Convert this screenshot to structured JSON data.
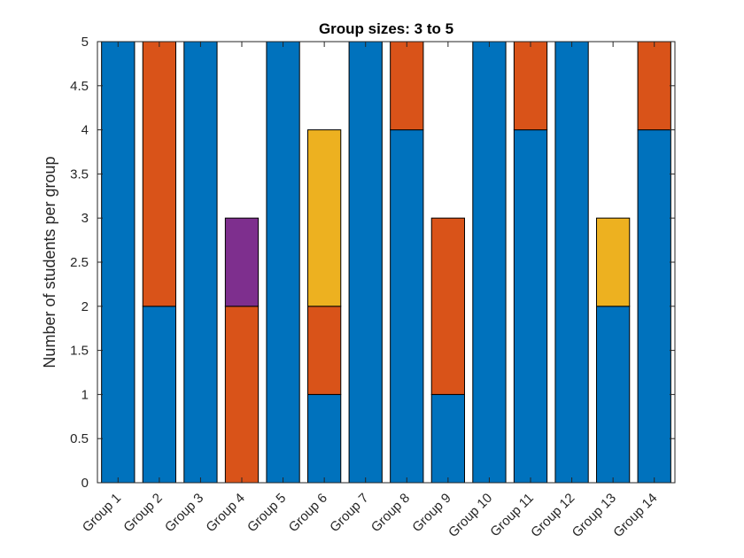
{
  "chart_data": {
    "type": "bar",
    "stacked": true,
    "title": "Group sizes: 3 to 5",
    "xlabel": "",
    "ylabel": "Number of students per group",
    "ylim": [
      0,
      5
    ],
    "yticks": [
      0,
      0.5,
      1,
      1.5,
      2,
      2.5,
      3,
      3.5,
      4,
      4.5,
      5
    ],
    "yticklabels": [
      "0",
      "0.5",
      "1",
      "1.5",
      "2",
      "2.5",
      "3",
      "3.5",
      "4",
      "4.5",
      "5"
    ],
    "categories": [
      "Group 1",
      "Group 2",
      "Group 3",
      "Group 4",
      "Group 5",
      "Group 6",
      "Group 7",
      "Group 8",
      "Group 9",
      "Group 10",
      "Group 11",
      "Group 12",
      "Group 13",
      "Group 14"
    ],
    "series": [
      {
        "color": "#0072BD",
        "values": [
          5,
          2,
          5,
          0,
          5,
          1,
          5,
          4,
          1,
          5,
          4,
          5,
          2,
          4
        ]
      },
      {
        "color": "#D95319",
        "values": [
          0,
          3,
          0,
          2,
          0,
          1,
          0,
          1,
          2,
          0,
          1,
          0,
          0,
          1
        ]
      },
      {
        "color": "#EDB120",
        "values": [
          0,
          0,
          0,
          0,
          0,
          2,
          0,
          0,
          0,
          0,
          0,
          0,
          1,
          0
        ]
      },
      {
        "color": "#7E2F8E",
        "values": [
          0,
          0,
          0,
          1,
          0,
          0,
          0,
          0,
          0,
          0,
          0,
          0,
          0,
          0
        ]
      }
    ],
    "grid": false,
    "legend": "none",
    "box": true
  }
}
